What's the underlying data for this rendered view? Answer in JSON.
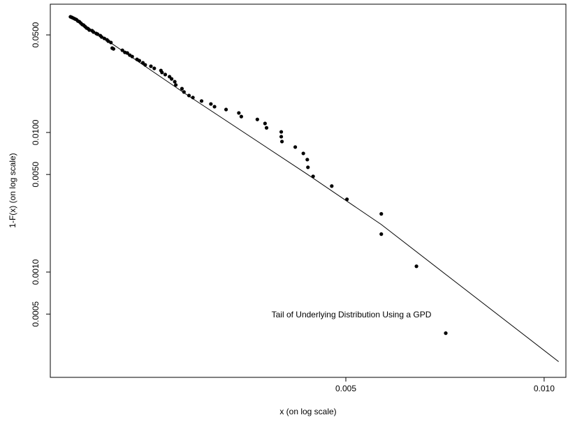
{
  "chart_data": {
    "type": "scatter",
    "annotation": "Tail of Underlying Distribution Using a GPD",
    "x_label": "x (on log scale)",
    "y_label": "1-F(x) (on log scale)",
    "xscale": "log",
    "yscale": "log",
    "xlim": [
      0.00178,
      0.01079
    ],
    "ylim": [
      0.000176,
      0.083
    ],
    "xticks": [
      0.005,
      {
        "value": 0.01,
        "label": "0.010"
      }
    ],
    "yticks": [
      {
        "value": 0.0005,
        "label": "0.0005"
      },
      {
        "value": 0.001,
        "label": "0.0010"
      },
      {
        "value": 0.005,
        "label": "0.0050"
      },
      {
        "value": 0.01,
        "label": "0.0100"
      },
      {
        "value": 0.05,
        "label": "0.0500"
      }
    ],
    "series": [
      {
        "type": "scatter",
        "color": "#000000",
        "x": [
          0.00191,
          0.00192,
          0.00193,
          0.00194,
          0.00195,
          0.00196,
          0.00197,
          0.00198,
          0.00199,
          0.002,
          0.00201,
          0.00202,
          0.00203,
          0.00204,
          0.00206,
          0.00207,
          0.00209,
          0.0021,
          0.00212,
          0.00213,
          0.00215,
          0.00217,
          0.00218,
          0.0022,
          0.00221,
          0.00222,
          0.00229,
          0.00231,
          0.00233,
          0.00235,
          0.00237,
          0.00241,
          0.00243,
          0.00246,
          0.00248,
          0.00253,
          0.00256,
          0.00262,
          0.00263,
          0.00266,
          0.0027,
          0.00272,
          0.00275,
          0.00276,
          0.00282,
          0.00284,
          0.00289,
          0.00293,
          0.00302,
          0.00312,
          0.00316,
          0.00329,
          0.00344,
          0.00347,
          0.00367,
          0.00377,
          0.00379,
          0.00399,
          0.00399,
          0.004,
          0.00419,
          0.00431,
          0.00437,
          0.00438,
          0.00446,
          0.00476,
          0.00502,
          0.00566,
          0.00566,
          0.0064,
          0.00709
        ],
        "values": [
          0.0674,
          0.0667,
          0.0659,
          0.0651,
          0.0644,
          0.0629,
          0.0622,
          0.0608,
          0.0594,
          0.0587,
          0.0574,
          0.0561,
          0.0555,
          0.0542,
          0.0536,
          0.0524,
          0.0512,
          0.0506,
          0.0494,
          0.0483,
          0.0472,
          0.0461,
          0.0451,
          0.0441,
          0.0402,
          0.0397,
          0.0388,
          0.0375,
          0.0371,
          0.0358,
          0.035,
          0.0334,
          0.0327,
          0.0316,
          0.0305,
          0.0298,
          0.0288,
          0.0278,
          0.0269,
          0.026,
          0.0251,
          0.0242,
          0.0231,
          0.0219,
          0.0206,
          0.0195,
          0.0184,
          0.0178,
          0.0168,
          0.016,
          0.0153,
          0.0146,
          0.0138,
          0.013,
          0.0124,
          0.0116,
          0.0108,
          0.0101,
          0.00933,
          0.00861,
          0.00786,
          0.00708,
          0.00639,
          0.00563,
          0.00485,
          0.00413,
          0.00332,
          0.00261,
          0.00187,
          0.0011,
          0.000365
        ]
      },
      {
        "type": "line",
        "color": "#000000",
        "x": [
          0.00191,
          0.00289,
          0.00437,
          0.00566,
          0.00712,
          0.01052
        ],
        "values": [
          0.069,
          0.0182,
          0.00502,
          0.00219,
          0.000947,
          0.000228
        ]
      }
    ]
  }
}
